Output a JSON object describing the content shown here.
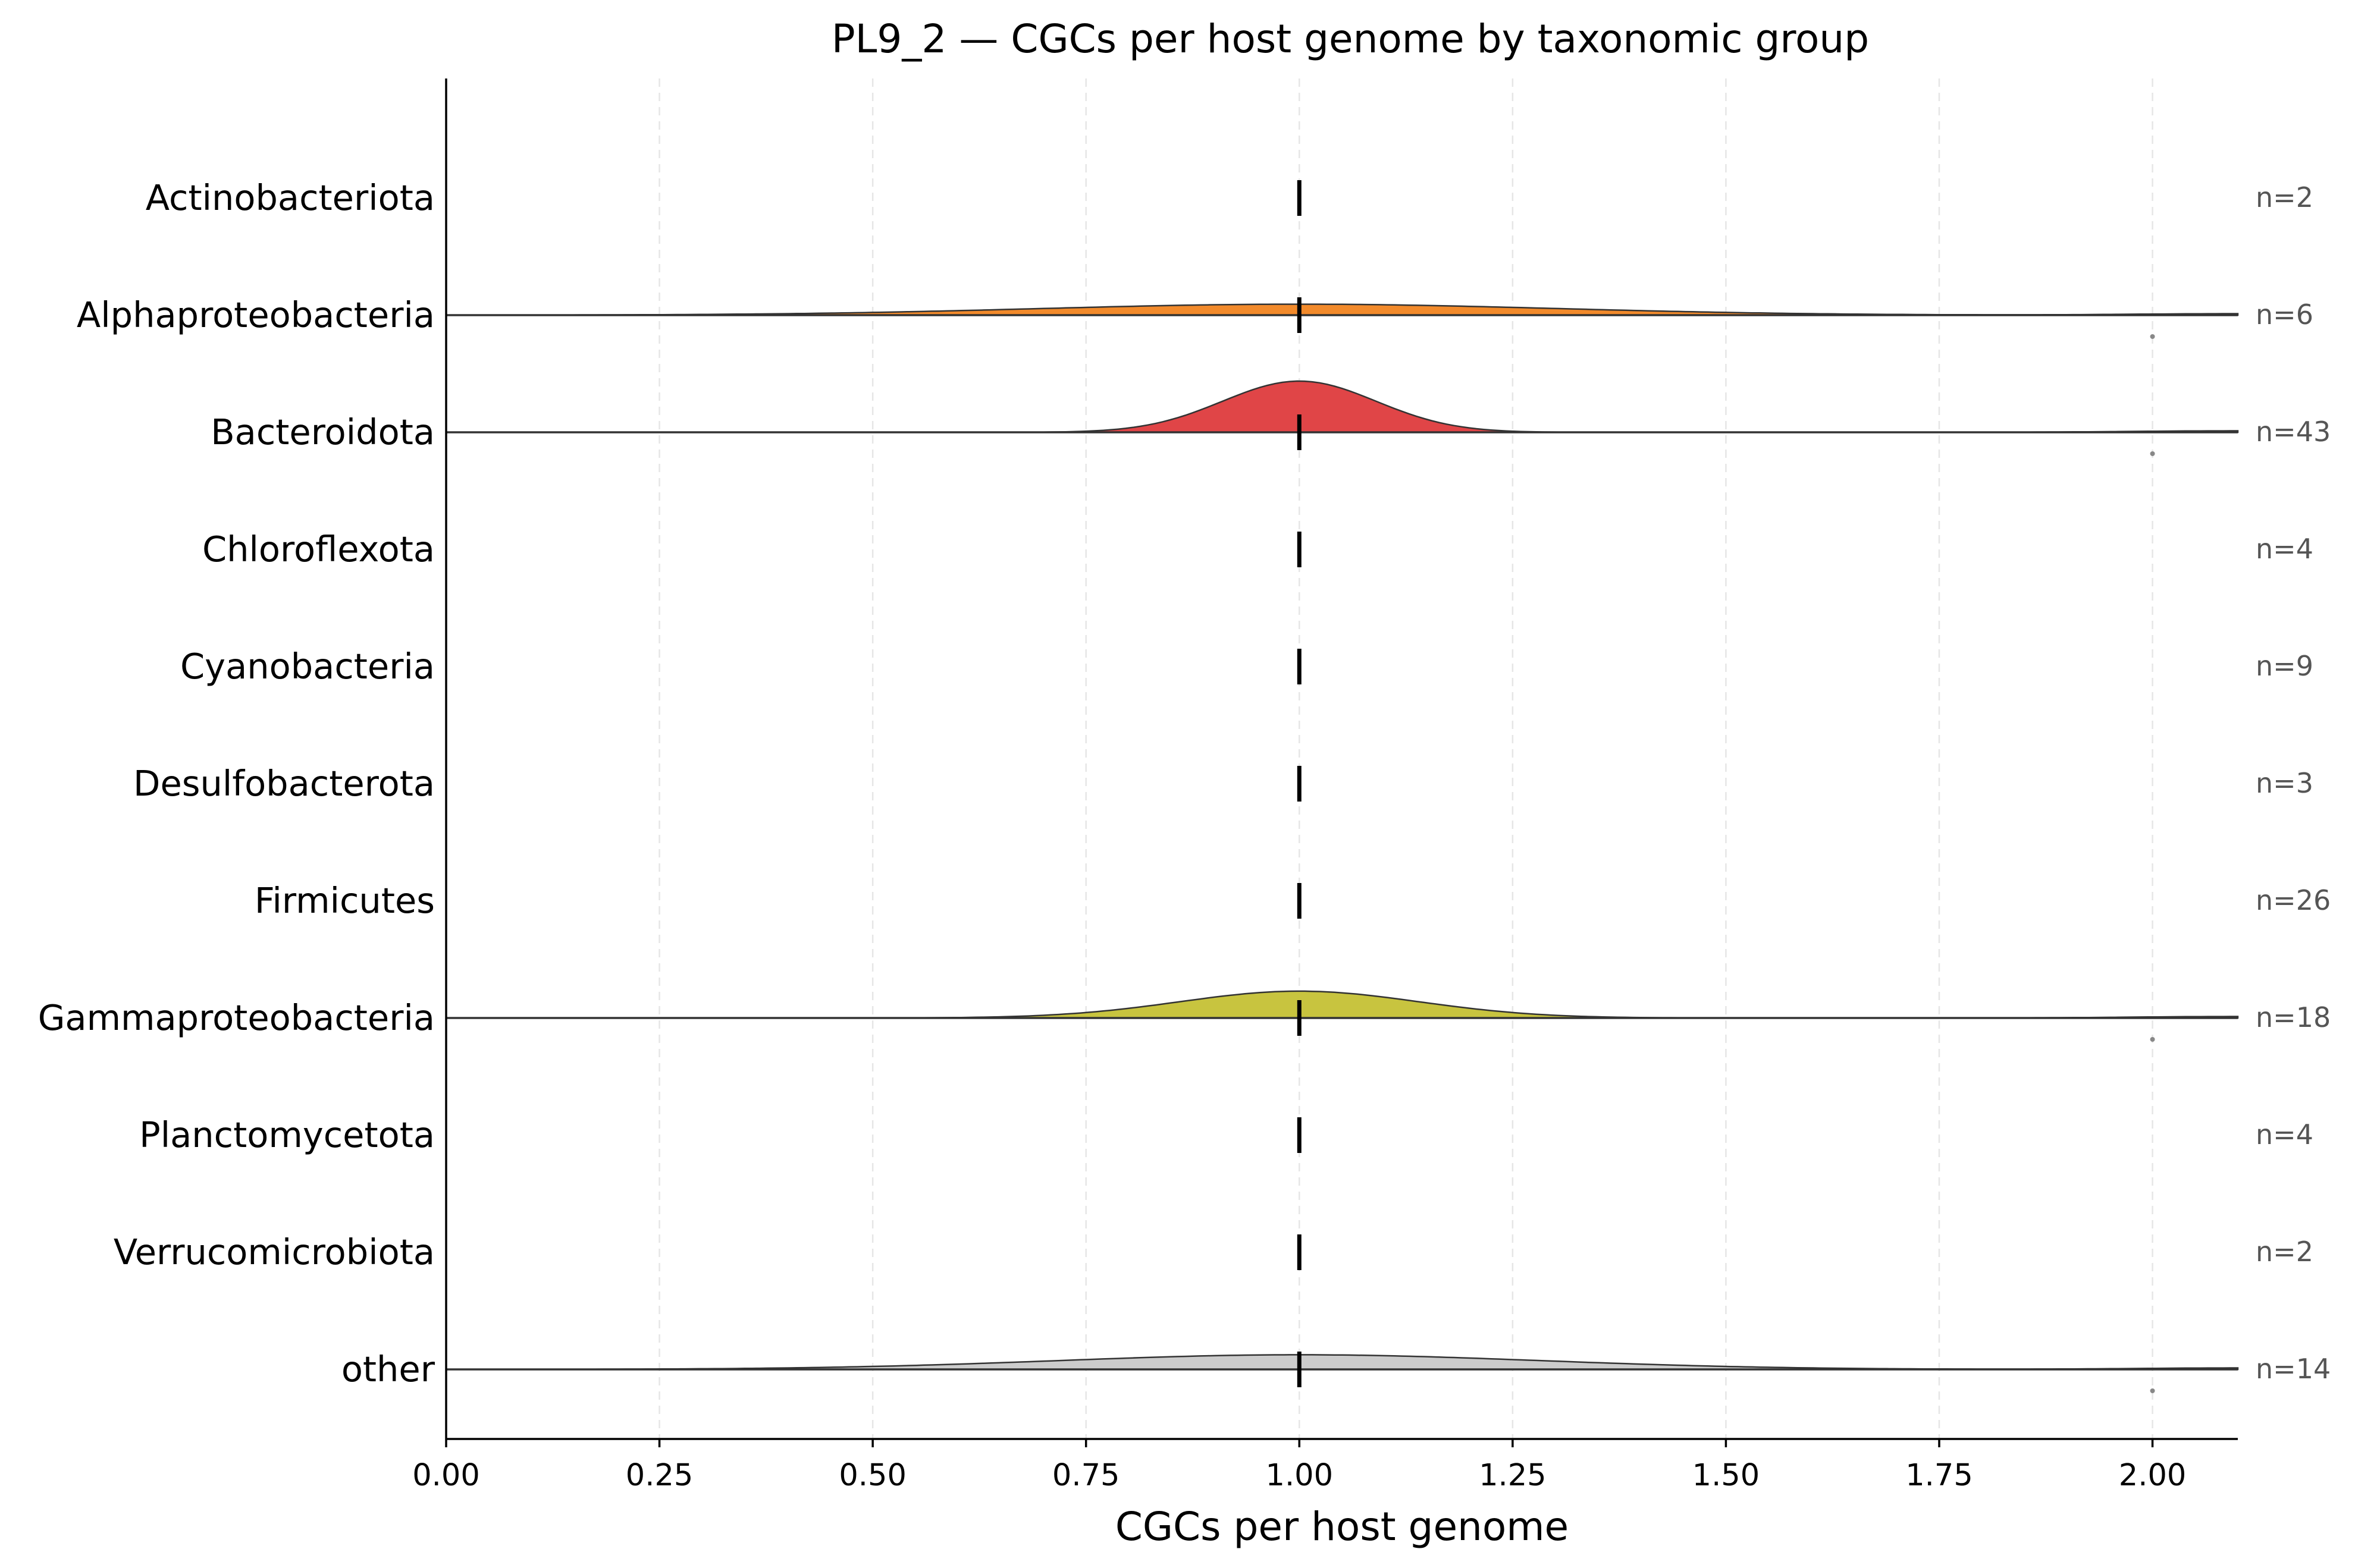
{
  "chart_data": {
    "type": "ridgeline",
    "title": "PL9_2 — CGCs per host genome by taxonomic group",
    "xlabel": "CGCs per host genome",
    "xlim": [
      0,
      2.1
    ],
    "xticks": [
      "0.00",
      "0.25",
      "0.50",
      "0.75",
      "1.00",
      "1.25",
      "1.50",
      "1.75",
      "2.00"
    ],
    "xtick_values": [
      0,
      0.25,
      0.5,
      0.75,
      1.0,
      1.25,
      1.5,
      1.75,
      2.0
    ],
    "grid": "vertical dashed",
    "median": 1.0,
    "groups": [
      {
        "name": "Actinobacteriota",
        "n_label": "n=2",
        "color": null,
        "density_peak": 0,
        "density_width": 0,
        "tail_at_2": false,
        "outlier_at": null
      },
      {
        "name": "Alphaproteobacteria",
        "n_label": "n=6",
        "color": "#f28a2b",
        "density_peak": 0.09,
        "density_width": 0.3,
        "tail_at_2": true,
        "outlier_at": 2.0
      },
      {
        "name": "Bacteroidota",
        "n_label": "n=43",
        "color": "#e04547",
        "density_peak": 0.42,
        "density_width": 0.09,
        "tail_at_2": true,
        "outlier_at": 2.0
      },
      {
        "name": "Chloroflexota",
        "n_label": "n=4",
        "color": null,
        "density_peak": 0,
        "density_width": 0,
        "tail_at_2": false,
        "outlier_at": null
      },
      {
        "name": "Cyanobacteria",
        "n_label": "n=9",
        "color": null,
        "density_peak": 0,
        "density_width": 0,
        "tail_at_2": false,
        "outlier_at": null
      },
      {
        "name": "Desulfobacterota",
        "n_label": "n=3",
        "color": null,
        "density_peak": 0,
        "density_width": 0,
        "tail_at_2": false,
        "outlier_at": null
      },
      {
        "name": "Firmicutes",
        "n_label": "n=26",
        "color": null,
        "density_peak": 0,
        "density_width": 0,
        "tail_at_2": false,
        "outlier_at": null
      },
      {
        "name": "Gammaproteobacteria",
        "n_label": "n=18",
        "color": "#c8c43f",
        "density_peak": 0.22,
        "density_width": 0.14,
        "tail_at_2": true,
        "outlier_at": 2.0
      },
      {
        "name": "Planctomycetota",
        "n_label": "n=4",
        "color": null,
        "density_peak": 0,
        "density_width": 0,
        "tail_at_2": false,
        "outlier_at": null
      },
      {
        "name": "Verrucomicrobiota",
        "n_label": "n=2",
        "color": null,
        "density_peak": 0,
        "density_width": 0,
        "tail_at_2": false,
        "outlier_at": null
      },
      {
        "name": "other",
        "n_label": "n=14",
        "color": "#cccccc",
        "density_peak": 0.12,
        "density_width": 0.28,
        "tail_at_2": true,
        "outlier_at": 2.0
      }
    ]
  }
}
